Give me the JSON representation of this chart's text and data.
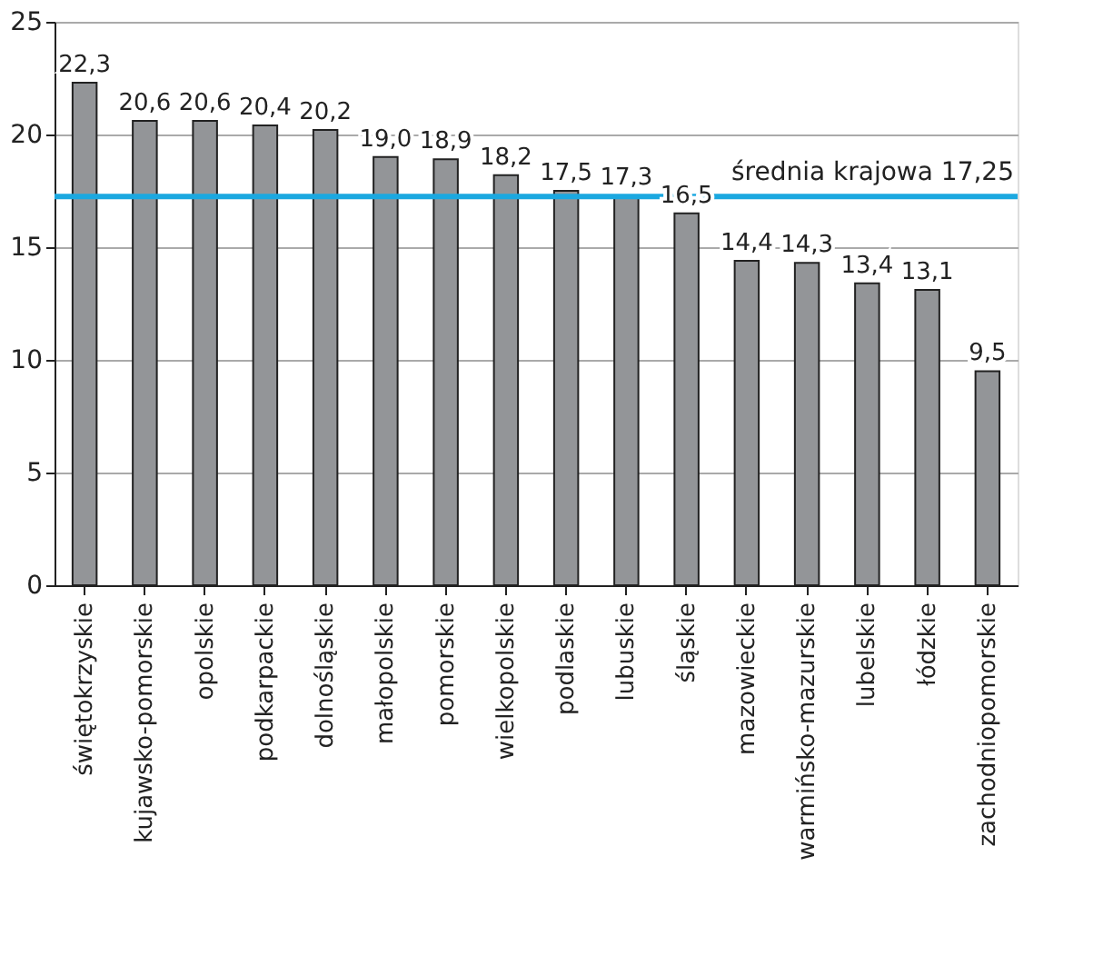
{
  "chart_data": {
    "type": "bar",
    "categories": [
      "świętokrzyskie",
      "kujawsko-pomorskie",
      "opolskie",
      "podkarpackie",
      "dolnośląskie",
      "małopolskie",
      "pomorskie",
      "wielkopolskie",
      "podlaskie",
      "lubuskie",
      "śląskie",
      "mazowieckie",
      "warmińsko-mazurskie",
      "lubelskie",
      "łódzkie",
      "zachodniopomorskie"
    ],
    "values": [
      22.3,
      20.6,
      20.6,
      20.4,
      20.2,
      19.0,
      18.9,
      18.2,
      17.5,
      17.3,
      16.5,
      14.4,
      14.3,
      13.4,
      13.1,
      9.5
    ],
    "value_labels": [
      "22,3",
      "20,6",
      "20,6",
      "20,4",
      "20,2",
      "19,0",
      "18,9",
      "18,2",
      "17,5",
      "17,3",
      "16,5",
      "14,4",
      "14,3",
      "13,4",
      "13,1",
      "9,5"
    ],
    "color": "#939598",
    "ylim": [
      0,
      25
    ],
    "yticks": [
      0,
      5,
      10,
      15,
      20,
      25
    ],
    "grid": "y",
    "ref_lines": [
      {
        "axis": "y",
        "value": 17.25,
        "label": "średnia krajowa 17,25",
        "color": "#1ba8e0"
      }
    ]
  }
}
